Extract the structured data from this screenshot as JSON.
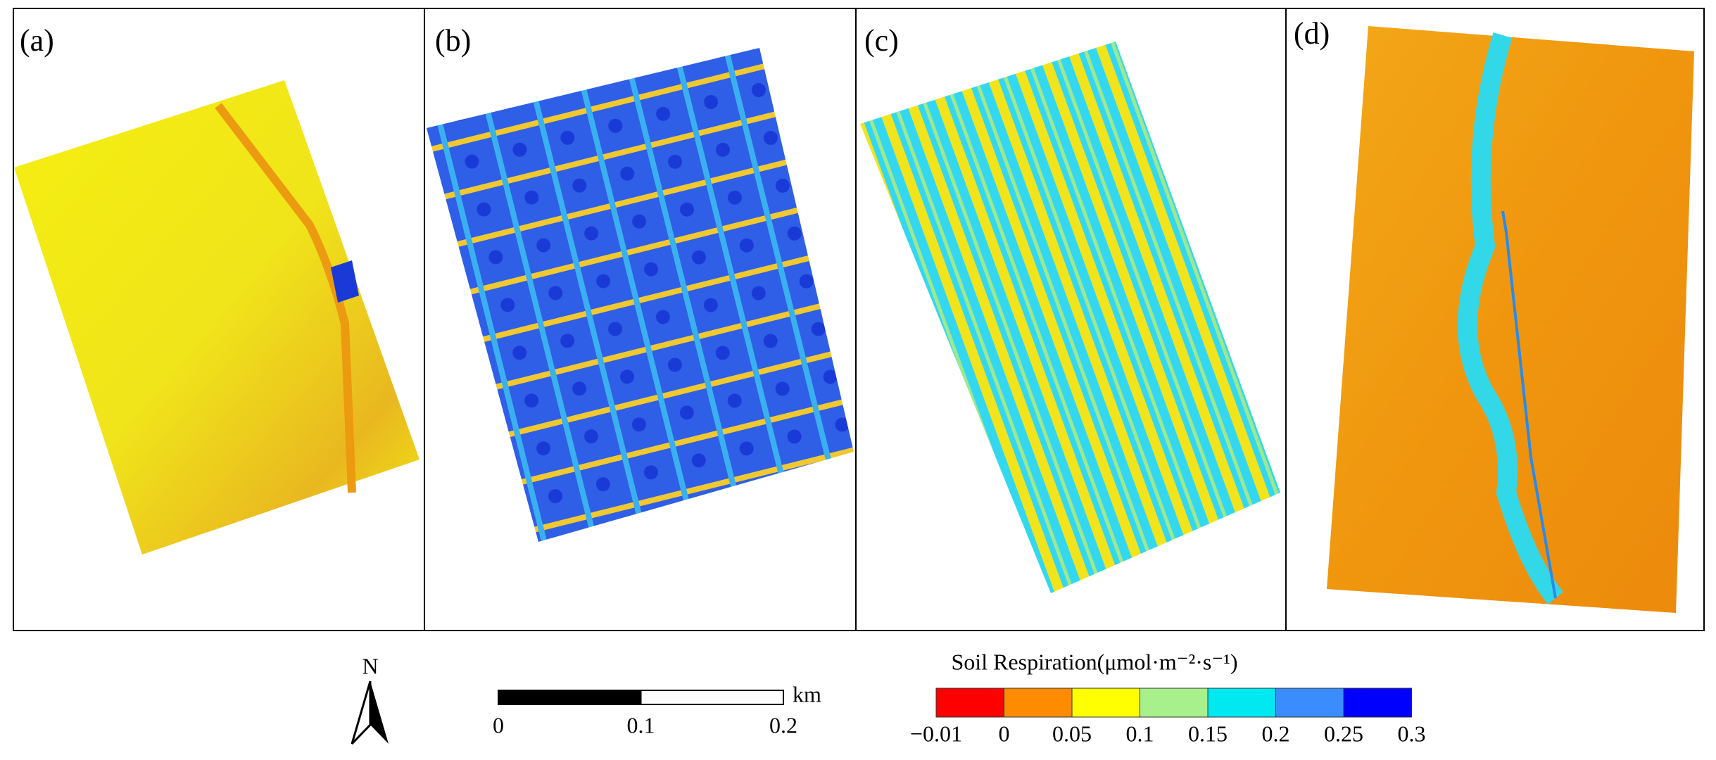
{
  "panels": [
    {
      "label": "(a)"
    },
    {
      "label": "(b)"
    },
    {
      "label": "(c)"
    },
    {
      "label": "(d)"
    }
  ],
  "north_arrow": {
    "label": "N"
  },
  "scale_bar": {
    "ticks": [
      0,
      0.1,
      0.2
    ],
    "unit": "km"
  },
  "legend": {
    "title": "Soil Respiration(μmol·m⁻²·s⁻¹)",
    "ticks": [
      {
        "value": -0.01,
        "label": "−0.01"
      },
      0,
      0.05,
      0.1,
      0.15,
      0.2,
      0.25,
      0.3
    ],
    "colors": [
      "#ff0000",
      "#ff8c00",
      "#ffff00",
      "#a8f08c",
      "#00e8f0",
      "#3a8cff",
      "#0000ff"
    ]
  }
}
